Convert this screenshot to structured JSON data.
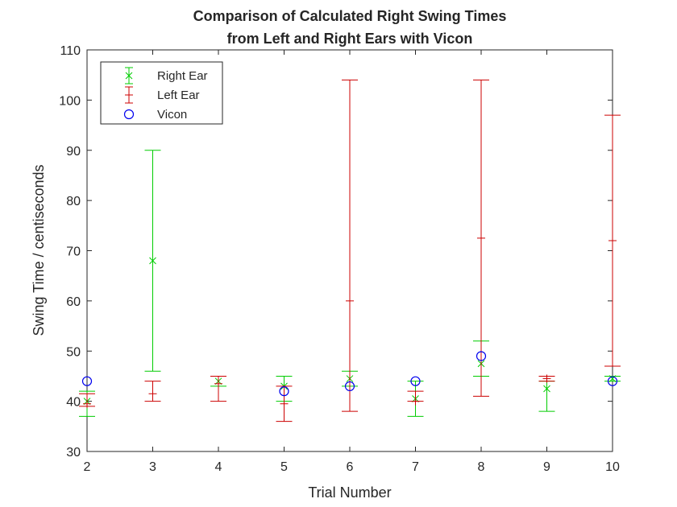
{
  "chart_data": {
    "type": "scatter",
    "title": [
      "Comparison of Calculated Right Swing Times",
      "from Left and Right Ears with Vicon"
    ],
    "xlabel": "Trial Number",
    "ylabel": "Swing Time / centiseconds",
    "xlim": [
      2,
      10
    ],
    "ylim": [
      30,
      110
    ],
    "xticks": [
      2,
      3,
      4,
      5,
      6,
      7,
      8,
      9,
      10
    ],
    "yticks": [
      30,
      40,
      50,
      60,
      70,
      80,
      90,
      100,
      110
    ],
    "legend_position": "top-left",
    "grid": false,
    "series": [
      {
        "name": "Right Ear",
        "marker": "x",
        "color": "#00cc00",
        "points": [
          {
            "x": 2,
            "y": 40,
            "low": 37,
            "high": 42
          },
          {
            "x": 3,
            "y": 68,
            "low": 46,
            "high": 90
          },
          {
            "x": 4,
            "y": 44,
            "low": 43,
            "high": 45
          },
          {
            "x": 5,
            "y": 43,
            "low": 40,
            "high": 45
          },
          {
            "x": 6,
            "y": 44.5,
            "low": 43,
            "high": 46
          },
          {
            "x": 7,
            "y": 40.5,
            "low": 37,
            "high": 44
          },
          {
            "x": 8,
            "y": 47.5,
            "low": 45,
            "high": 52
          },
          {
            "x": 9,
            "y": 42.5,
            "low": 38,
            "high": 44
          },
          {
            "x": 10,
            "y": 44.5,
            "low": 44,
            "high": 45
          }
        ]
      },
      {
        "name": "Left Ear",
        "marker": "+",
        "color": "#cc0000",
        "points": [
          {
            "x": 2,
            "y": 39.5,
            "low": 39,
            "high": 41.5
          },
          {
            "x": 3,
            "y": 41.5,
            "low": 40,
            "high": 44
          },
          {
            "x": 4,
            "y": 43.5,
            "low": 40,
            "high": 45
          },
          {
            "x": 5,
            "y": 39.5,
            "low": 36,
            "high": 43
          },
          {
            "x": 6,
            "y": 60,
            "low": 38,
            "high": 104
          },
          {
            "x": 7,
            "y": 40,
            "low": 40,
            "high": 42
          },
          {
            "x": 8,
            "y": 72.5,
            "low": 41,
            "high": 104
          },
          {
            "x": 9,
            "y": 44.5,
            "low": 44,
            "high": 45
          },
          {
            "x": 10,
            "y": 72,
            "low": 47,
            "high": 97
          }
        ]
      },
      {
        "name": "Vicon",
        "marker": "o",
        "color": "#0000ee",
        "points": [
          {
            "x": 2,
            "y": 44
          },
          {
            "x": 5,
            "y": 42
          },
          {
            "x": 6,
            "y": 43
          },
          {
            "x": 7,
            "y": 44
          },
          {
            "x": 8,
            "y": 49
          },
          {
            "x": 10,
            "y": 44
          }
        ]
      }
    ]
  }
}
